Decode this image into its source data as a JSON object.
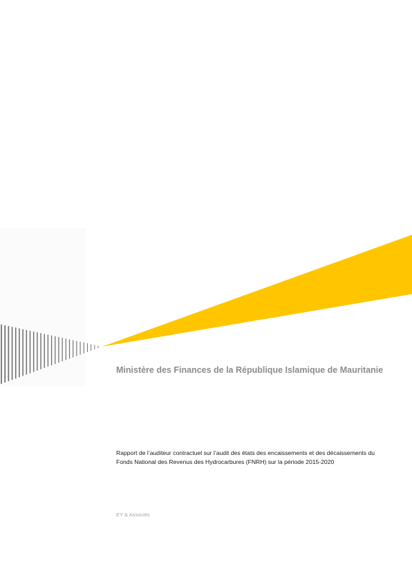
{
  "cover": {
    "client_title": "Ministère des Finances de la République Islamique de Mauritanie",
    "report_title": "Rapport de l’auditeur contractuel sur l’audit des états des encaissements et des décaissements du Fonds National des Revenus des Hydrocarbures (FNRH) sur la période 2015-2020",
    "firm_name": "EY & Associés"
  },
  "colors": {
    "beam": "#ffc600",
    "stripes": "#6e6e6e"
  },
  "graphic": {
    "name": "ey-beam-logo"
  }
}
